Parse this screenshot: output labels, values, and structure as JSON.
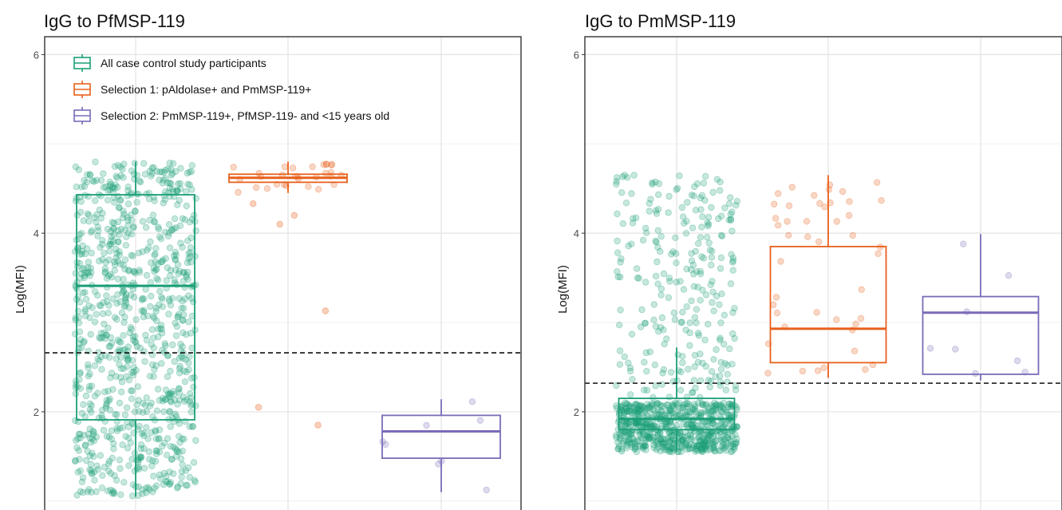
{
  "colors": {
    "green": "#1b9e77",
    "orange": "#e8601c",
    "purple": "#7b6bb8"
  },
  "legend": [
    {
      "label": "All case control study participants",
      "color": "#1b9e77"
    },
    {
      "label": "Selection 1: pAldolase+ and PmMSP-119+",
      "color": "#e8601c"
    },
    {
      "label": "Selection 2: PmMSP-119+, PfMSP-119- and <15 years old",
      "color": "#7b6bb8"
    }
  ],
  "chart_data": [
    {
      "type": "box",
      "title": "IgG to PfMSP-119",
      "ylabel": "Log(MFI)",
      "ylim": [
        0.9,
        6.2
      ],
      "yticks": [
        2,
        4,
        6
      ],
      "cutoff": 2.66,
      "legend_placement": "top-left",
      "grid": true,
      "groups": [
        {
          "color": "#1b9e77",
          "q1": 1.91,
          "median": 3.41,
          "q3": 4.43,
          "whisker_low": 1.05,
          "whisker_high": 4.8,
          "n_points": 900,
          "point_min": 1.05,
          "point_max": 4.8,
          "outliers": []
        },
        {
          "color": "#e8601c",
          "q1": 4.57,
          "median": 4.62,
          "q3": 4.66,
          "whisker_low": 4.45,
          "whisker_high": 4.8,
          "n_points": 30,
          "point_min": 4.45,
          "point_max": 4.8,
          "outliers": [
            4.33,
            4.2,
            4.1,
            3.13,
            2.05,
            1.85
          ]
        },
        {
          "color": "#7b6bb8",
          "q1": 1.48,
          "median": 1.78,
          "q3": 1.96,
          "whisker_low": 1.1,
          "whisker_high": 2.14,
          "n_points": 8,
          "point_min": 1.1,
          "point_max": 2.14,
          "outliers": []
        }
      ]
    },
    {
      "type": "box",
      "title": "IgG to PmMSP-119",
      "ylabel": "Log(MFI)",
      "ylim": [
        0.9,
        6.2
      ],
      "yticks": [
        2,
        4,
        6
      ],
      "cutoff": 2.32,
      "grid": true,
      "groups": [
        {
          "color": "#1b9e77",
          "q1": 1.8,
          "median": 1.92,
          "q3": 2.15,
          "whisker_low": 1.55,
          "whisker_high": 2.72,
          "n_points": 900,
          "point_min": 1.55,
          "point_max": 4.65,
          "outliers": []
        },
        {
          "color": "#e8601c",
          "q1": 2.55,
          "median": 2.93,
          "q3": 3.85,
          "whisker_low": 2.38,
          "whisker_high": 4.65,
          "n_points": 45,
          "point_min": 2.38,
          "point_max": 4.65,
          "outliers": []
        },
        {
          "color": "#7b6bb8",
          "q1": 2.42,
          "median": 3.11,
          "q3": 3.29,
          "whisker_low": 2.35,
          "whisker_high": 3.99,
          "n_points": 8,
          "point_min": 2.35,
          "point_max": 3.99,
          "outliers": []
        }
      ]
    }
  ]
}
